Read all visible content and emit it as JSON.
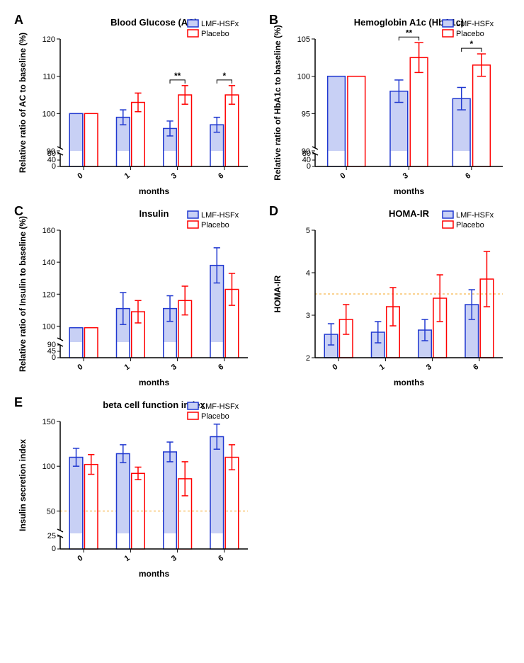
{
  "legend": {
    "g1": "LMF-HSFx",
    "g2": "Placebo"
  },
  "colors": {
    "g1": "#2038d0",
    "g1_fill": "#c8d0f5",
    "g2": "#ff0000",
    "bg": "#ffffff",
    "ref": "#f5a623"
  },
  "fonts": {
    "title_size": 13,
    "axis_title_size": 12,
    "tick_size": 11,
    "legend_size": 11,
    "panel_label_size": 18
  },
  "panels": {
    "A": {
      "title": "Blood Glucose (AC)",
      "xlabel": "months",
      "ylabel": "Relative ratio of AC to baseline (%)",
      "categories": [
        "0",
        "1",
        "3",
        "6"
      ],
      "ylim": [
        90,
        120
      ],
      "yticks": [
        90,
        100,
        110,
        120
      ],
      "break_ticks": [
        0,
        40,
        80
      ],
      "g1": {
        "vals": [
          100,
          99,
          96,
          97
        ],
        "errs": [
          0,
          2,
          2,
          2
        ]
      },
      "g2": {
        "vals": [
          100,
          103,
          105,
          105
        ],
        "errs": [
          0,
          2.5,
          2.5,
          2.5
        ]
      },
      "sig": [
        {
          "pair": [
            2
          ],
          "label": "**"
        },
        {
          "pair": [
            3
          ],
          "label": "*"
        }
      ]
    },
    "B": {
      "title": "Hemoglobin A1c (HbA1c)",
      "xlabel": "months",
      "ylabel": "Relative ratio of HbA1c to baseline (%)",
      "categories": [
        "0",
        "3",
        "6"
      ],
      "ylim": [
        90,
        105
      ],
      "yticks": [
        90,
        95,
        100,
        105
      ],
      "break_ticks": [
        0,
        40,
        80
      ],
      "g1": {
        "vals": [
          100,
          98,
          97
        ],
        "errs": [
          0,
          1.5,
          1.5
        ]
      },
      "g2": {
        "vals": [
          100,
          102.5,
          101.5
        ],
        "errs": [
          0,
          2,
          1.5
        ]
      },
      "sig": [
        {
          "pair": [
            1
          ],
          "label": "**"
        },
        {
          "pair": [
            2
          ],
          "label": "*"
        }
      ]
    },
    "C": {
      "title": "Insulin",
      "xlabel": "months",
      "ylabel": "Relative ratio of Insulin to baseline (%)",
      "categories": [
        "0",
        "1",
        "3",
        "6"
      ],
      "ylim": [
        90,
        160
      ],
      "yticks": [
        100,
        120,
        140,
        160
      ],
      "break_ticks": [
        0,
        45,
        90
      ],
      "g1": {
        "vals": [
          99,
          111,
          111,
          138
        ],
        "errs": [
          0,
          10,
          8,
          11
        ]
      },
      "g2": {
        "vals": [
          99,
          109,
          116,
          123
        ],
        "errs": [
          0,
          7,
          9,
          10
        ]
      },
      "sig": []
    },
    "D": {
      "title": "HOMA-IR",
      "xlabel": "months",
      "ylabel": "HOMA-IR",
      "categories": [
        "0",
        "1",
        "3",
        "6"
      ],
      "ylim": [
        2,
        5
      ],
      "yticks": [
        2,
        3,
        4,
        5
      ],
      "break_ticks": null,
      "ref": 3.5,
      "g1": {
        "vals": [
          2.55,
          2.6,
          2.65,
          3.25
        ],
        "errs": [
          0.25,
          0.25,
          0.25,
          0.35
        ]
      },
      "g2": {
        "vals": [
          2.9,
          3.2,
          3.4,
          3.85
        ],
        "errs": [
          0.35,
          0.45,
          0.55,
          0.65
        ]
      },
      "sig": []
    },
    "E": {
      "title": "beta cell function index",
      "xlabel": "months",
      "ylabel": "Insulin secretion index",
      "categories": [
        "0",
        "1",
        "3",
        "6"
      ],
      "ylim": [
        25,
        150
      ],
      "yticks": [
        50,
        100,
        150
      ],
      "break_ticks": [
        0,
        25
      ],
      "ref": 50,
      "g1": {
        "vals": [
          110,
          114,
          116,
          133
        ],
        "errs": [
          10,
          10,
          11,
          14
        ]
      },
      "g2": {
        "vals": [
          102,
          92,
          86,
          110
        ],
        "errs": [
          11,
          7,
          19,
          14
        ]
      },
      "sig": []
    }
  }
}
